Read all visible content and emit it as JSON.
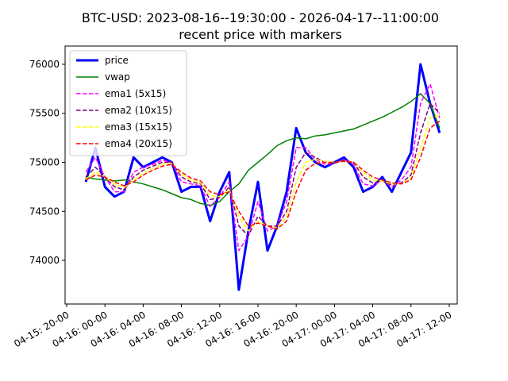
{
  "chart_data": {
    "type": "line",
    "title": "BTC-USD: 2023-08-16--19:30:00 - 2026-04-17--11:00:00",
    "subtitle": "recent price with markers",
    "x": [
      "04-15 22:00",
      "04-15 23:00",
      "04-16 00:00",
      "04-16 01:00",
      "04-16 02:00",
      "04-16 03:00",
      "04-16 04:00",
      "04-16 05:00",
      "04-16 06:00",
      "04-16 07:00",
      "04-16 08:00",
      "04-16 09:00",
      "04-16 10:00",
      "04-16 11:00",
      "04-16 12:00",
      "04-16 13:00",
      "04-16 14:00",
      "04-16 15:00",
      "04-16 16:00",
      "04-16 17:00",
      "04-16 18:00",
      "04-16 19:00",
      "04-16 20:00",
      "04-16 21:00",
      "04-16 22:00",
      "04-16 23:00",
      "04-17 00:00",
      "04-17 01:00",
      "04-17 02:00",
      "04-17 03:00",
      "04-17 04:00",
      "04-17 05:00",
      "04-17 06:00",
      "04-17 07:00",
      "04-17 08:00",
      "04-17 09:00",
      "04-17 10:00",
      "04-17 11:00"
    ],
    "series": [
      {
        "name": "price",
        "color": "#0000ff",
        "linewidth": 3,
        "linestyle": "solid",
        "values": [
          74800,
          75150,
          74750,
          74650,
          74700,
          75050,
          74950,
          75000,
          75050,
          75000,
          74700,
          74750,
          74750,
          74400,
          74700,
          74900,
          73700,
          74300,
          74800,
          74100,
          74350,
          74700,
          75350,
          75100,
          75000,
          74950,
          75000,
          75050,
          74950,
          74700,
          74750,
          74850,
          74700,
          74900,
          75100,
          76000,
          75600,
          75300
        ]
      },
      {
        "name": "vwap",
        "color": "#008000",
        "linewidth": 1.5,
        "linestyle": "solid",
        "values": [
          74850,
          74830,
          74820,
          74810,
          74820,
          74800,
          74780,
          74750,
          74720,
          74680,
          74640,
          74620,
          74580,
          74560,
          74600,
          74700,
          74780,
          74920,
          75000,
          75080,
          75170,
          75220,
          75250,
          75240,
          75270,
          75280,
          75300,
          75320,
          75340,
          75380,
          75420,
          75460,
          75510,
          75560,
          75620,
          75700,
          75600,
          75350
        ]
      },
      {
        "name": "ema1 (5x15)",
        "color": "#ff00ff",
        "linewidth": 1.5,
        "linestyle": "dashed",
        "values": [
          74900,
          75050,
          74850,
          74700,
          74700,
          74900,
          74950,
          74980,
          75020,
          75000,
          74800,
          74780,
          74760,
          74550,
          74650,
          74800,
          74100,
          74250,
          74600,
          74300,
          74350,
          74600,
          75150,
          75150,
          75030,
          74980,
          74990,
          75030,
          74980,
          74780,
          74760,
          74820,
          74750,
          74820,
          74950,
          75600,
          75800,
          75450
        ]
      },
      {
        "name": "ema2 (10x15)",
        "color": "#800080",
        "linewidth": 1.5,
        "linestyle": "dashed",
        "values": [
          74850,
          74950,
          74850,
          74750,
          74720,
          74850,
          74920,
          74960,
          75000,
          75000,
          74850,
          74800,
          74780,
          74620,
          74640,
          74750,
          74350,
          74250,
          74450,
          74350,
          74350,
          74500,
          74950,
          75100,
          75050,
          75000,
          74990,
          75020,
          75000,
          74850,
          74790,
          74810,
          74770,
          74790,
          74870,
          75300,
          75600,
          75500
        ]
      },
      {
        "name": "ema3 (15x15)",
        "color": "#ffff00",
        "linewidth": 1.5,
        "linestyle": "dashed",
        "values": [
          74830,
          74900,
          74850,
          74780,
          74740,
          74820,
          74890,
          74940,
          74980,
          74990,
          74880,
          74820,
          74790,
          74660,
          74650,
          74720,
          74450,
          74300,
          74400,
          74350,
          74330,
          74450,
          74800,
          75000,
          75030,
          75010,
          75000,
          75010,
          75000,
          74900,
          74820,
          74810,
          74780,
          74780,
          74840,
          75150,
          75450,
          75480
        ]
      },
      {
        "name": "ema4 (20x15)",
        "color": "#ff0000",
        "linewidth": 1.5,
        "linestyle": "dashed",
        "values": [
          74820,
          74870,
          74850,
          74800,
          74760,
          74800,
          74870,
          74920,
          74960,
          74980,
          74900,
          74840,
          74810,
          74700,
          74670,
          74700,
          74500,
          74350,
          74380,
          74350,
          74320,
          74400,
          74700,
          74920,
          74990,
          75000,
          75000,
          75010,
          75000,
          74920,
          74850,
          74820,
          74790,
          74780,
          74820,
          75050,
          75350,
          75420
        ]
      }
    ],
    "xlim": [
      "04-15 19:50",
      "04-17 12:50"
    ],
    "xticks": [
      {
        "value": "04-15 20:00",
        "label": "04-15: 20-00"
      },
      {
        "value": "04-16 00:00",
        "label": "04-16: 00-00"
      },
      {
        "value": "04-16 04:00",
        "label": "04-16: 04-00"
      },
      {
        "value": "04-16 08:00",
        "label": "04-16: 08-00"
      },
      {
        "value": "04-16 12:00",
        "label": "04-16: 12-00"
      },
      {
        "value": "04-16 16:00",
        "label": "04-16: 16-00"
      },
      {
        "value": "04-16 20:00",
        "label": "04-16: 20-00"
      },
      {
        "value": "04-17 00:00",
        "label": "04-17: 00-00"
      },
      {
        "value": "04-17 04:00",
        "label": "04-17: 04-00"
      },
      {
        "value": "04-17 08:00",
        "label": "04-17: 08-00"
      },
      {
        "value": "04-17 12:00",
        "label": "04-17: 12-00"
      }
    ],
    "ylim": [
      73555,
      76186
    ],
    "yticks": [
      74000,
      74500,
      75000,
      75500,
      76000
    ],
    "legend": "upper left"
  }
}
